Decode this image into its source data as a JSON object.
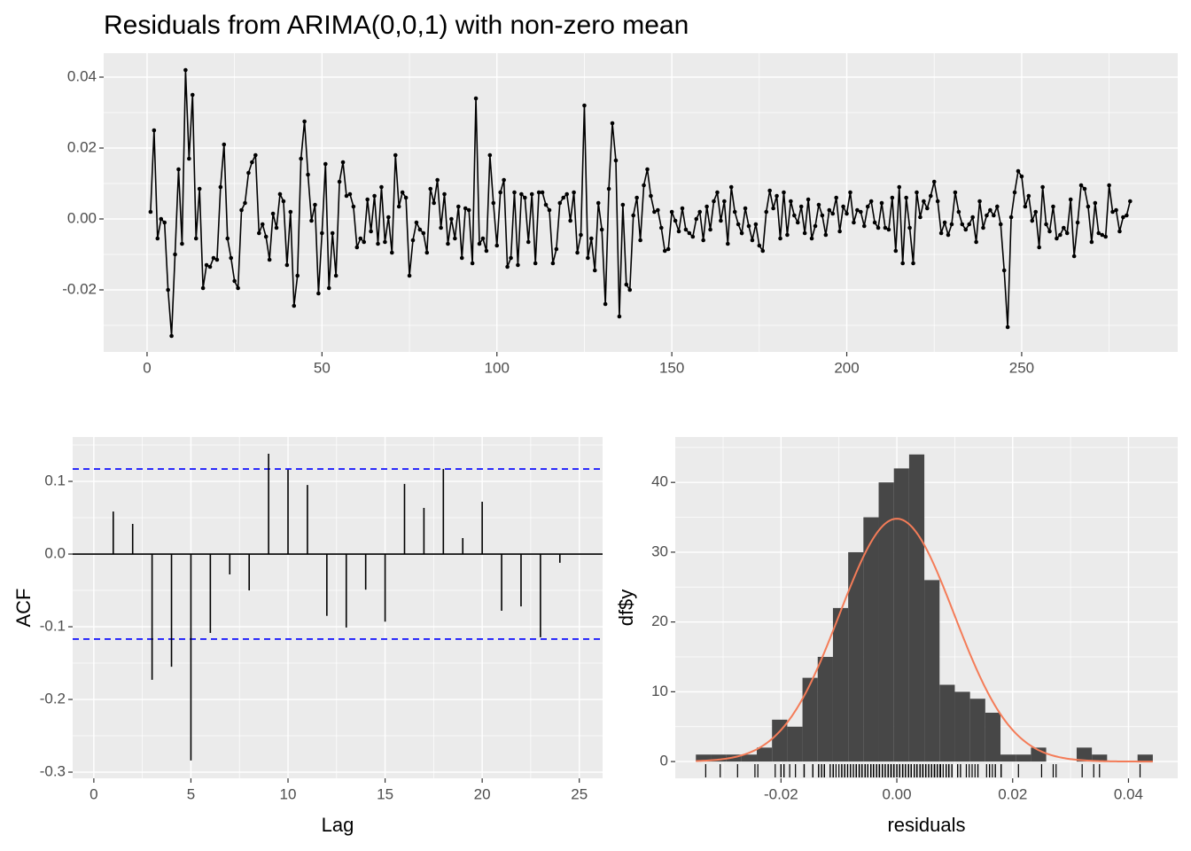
{
  "chart_data": [
    {
      "type": "line",
      "title": "Residuals from ARIMA(0,0,1) with non-zero mean",
      "x": [
        1,
        2,
        3,
        4,
        5,
        6,
        7,
        8,
        9,
        10,
        11,
        12,
        13,
        14,
        15,
        16,
        17,
        18,
        19,
        20,
        21,
        22,
        23,
        24,
        25,
        26,
        27,
        28,
        29,
        30,
        31,
        32,
        33,
        34,
        35,
        36,
        37,
        38,
        39,
        40,
        41,
        42,
        43,
        44,
        45,
        46,
        47,
        48,
        49,
        50,
        51,
        52,
        53,
        54,
        55,
        56,
        57,
        58,
        59,
        60,
        61,
        62,
        63,
        64,
        65,
        66,
        67,
        68,
        69,
        70,
        71,
        72,
        73,
        74,
        75,
        76,
        77,
        78,
        79,
        80,
        81,
        82,
        83,
        84,
        85,
        86,
        87,
        88,
        89,
        90,
        91,
        92,
        93,
        94,
        95,
        96,
        97,
        98,
        99,
        100,
        101,
        102,
        103,
        104,
        105,
        106,
        107,
        108,
        109,
        110,
        111,
        112,
        113,
        114,
        115,
        116,
        117,
        118,
        119,
        120,
        121,
        122,
        123,
        124,
        125,
        126,
        127,
        128,
        129,
        130,
        131,
        132,
        133,
        134,
        135,
        136,
        137,
        138,
        139,
        140,
        141,
        142,
        143,
        144,
        145,
        146,
        147,
        148,
        149,
        150,
        151,
        152,
        153,
        154,
        155,
        156,
        157,
        158,
        159,
        160,
        161,
        162,
        163,
        164,
        165,
        166,
        167,
        168,
        169,
        170,
        171,
        172,
        173,
        174,
        175,
        176,
        177,
        178,
        179,
        180,
        181,
        182,
        183,
        184,
        185,
        186,
        187,
        188,
        189,
        190,
        191,
        192,
        193,
        194,
        195,
        196,
        197,
        198,
        199,
        200,
        201,
        202,
        203,
        204,
        205,
        206,
        207,
        208,
        209,
        210,
        211,
        212,
        213,
        214,
        215,
        216,
        217,
        218,
        219,
        220,
        221,
        222,
        223,
        224,
        225,
        226,
        227,
        228,
        229,
        230,
        231,
        232,
        233,
        234,
        235,
        236,
        237,
        238,
        239,
        240,
        241,
        242,
        243,
        244,
        245,
        246,
        247,
        248,
        249,
        250,
        251,
        252,
        253,
        254,
        255,
        256,
        257,
        258,
        259,
        260,
        261,
        262,
        263,
        264,
        265,
        266,
        267,
        268,
        269,
        270,
        271,
        272,
        273,
        274,
        275,
        276,
        277,
        278,
        279,
        280,
        281
      ],
      "series": [
        {
          "color": "#000000",
          "values": [
            0.002,
            0.025,
            -0.0055,
            0.0,
            -0.001,
            -0.02,
            -0.033,
            -0.01,
            0.014,
            -0.007,
            0.042,
            0.017,
            0.035,
            -0.0055,
            0.0085,
            -0.0195,
            -0.013,
            -0.0135,
            -0.011,
            -0.0115,
            0.009,
            0.021,
            -0.0055,
            -0.011,
            -0.0175,
            -0.0195,
            0.0025,
            0.0045,
            0.013,
            0.016,
            0.018,
            -0.004,
            -0.0015,
            -0.005,
            -0.0115,
            0.0015,
            -0.0025,
            0.007,
            0.005,
            -0.013,
            0.002,
            -0.0245,
            -0.016,
            0.017,
            0.0275,
            0.0125,
            -0.0005,
            0.004,
            -0.021,
            -0.004,
            0.0155,
            -0.0195,
            -0.004,
            -0.016,
            0.0105,
            0.016,
            0.0065,
            0.007,
            0.0035,
            -0.008,
            -0.0055,
            -0.0065,
            0.0055,
            -0.0035,
            0.0065,
            -0.007,
            0.009,
            -0.0065,
            0.0005,
            -0.0095,
            0.018,
            0.0035,
            0.0075,
            0.006,
            -0.016,
            -0.006,
            -0.001,
            -0.003,
            -0.004,
            -0.0095,
            0.0085,
            0.0045,
            0.011,
            -0.0025,
            0.007,
            -0.007,
            0.0,
            -0.0055,
            0.0035,
            -0.011,
            0.003,
            0.0025,
            -0.0125,
            0.034,
            -0.007,
            -0.0055,
            -0.009,
            0.018,
            0.0045,
            -0.0075,
            0.0075,
            0.011,
            -0.0135,
            -0.011,
            0.0075,
            -0.013,
            0.007,
            0.006,
            -0.0065,
            0.007,
            -0.0125,
            0.0075,
            0.0075,
            0.004,
            0.0025,
            -0.0125,
            -0.0085,
            0.0045,
            0.006,
            0.007,
            -0.0005,
            0.0075,
            -0.0095,
            -0.0045,
            0.032,
            -0.011,
            -0.0055,
            -0.0145,
            0.0045,
            -0.003,
            -0.024,
            0.0085,
            0.027,
            0.0165,
            -0.0275,
            0.004,
            -0.0185,
            -0.02,
            0.001,
            0.006,
            -0.006,
            0.0095,
            0.014,
            0.0065,
            0.002,
            0.0025,
            -0.0025,
            -0.009,
            -0.0085,
            0.002,
            -0.0005,
            -0.0035,
            0.003,
            -0.003,
            -0.004,
            -0.005,
            0.0,
            0.002,
            -0.006,
            0.0035,
            -0.003,
            0.005,
            0.0075,
            -0.0005,
            0.005,
            -0.007,
            0.009,
            0.002,
            -0.0015,
            -0.004,
            0.003,
            -0.002,
            -0.006,
            -0.0015,
            -0.0075,
            -0.009,
            0.002,
            0.008,
            0.003,
            0.0065,
            -0.0055,
            0.0075,
            -0.0045,
            0.005,
            0.001,
            -0.001,
            0.0035,
            -0.004,
            0.0055,
            -0.0055,
            -0.002,
            0.004,
            0.001,
            -0.0045,
            0.0025,
            0.0015,
            0.006,
            -0.0035,
            0.0035,
            0.0015,
            0.0075,
            -0.001,
            0.0025,
            0.002,
            -0.002,
            0.0035,
            0.005,
            -0.001,
            -0.0025,
            0.0045,
            -0.0025,
            -0.003,
            0.006,
            -0.009,
            0.009,
            -0.0125,
            0.006,
            -0.0025,
            -0.0125,
            0.0075,
            0.0005,
            0.005,
            0.003,
            0.0065,
            0.0105,
            0.005,
            -0.004,
            -0.001,
            -0.0045,
            -0.0015,
            0.0075,
            0.002,
            -0.0015,
            -0.003,
            -0.0015,
            0.0005,
            -0.0065,
            0.005,
            -0.0025,
            0.001,
            0.0025,
            0.001,
            0.0035,
            -0.0015,
            -0.0145,
            -0.0305,
            0.0005,
            0.0075,
            0.0135,
            0.012,
            0.0035,
            0.0065,
            -0.0005,
            0.002,
            -0.008,
            0.009,
            -0.0015,
            -0.0035,
            0.0035,
            -0.0055,
            -0.0045,
            -0.0025,
            -0.004,
            0.0055,
            -0.0105,
            -0.001,
            0.0095,
            0.0085,
            0.0035,
            -0.0065,
            0.0045,
            -0.004,
            -0.0045,
            -0.005,
            0.0095,
            0.002,
            0.0025,
            -0.0035,
            0.0005,
            0.001,
            0.005
          ]
        }
      ],
      "xlim": [
        -12.4,
        294.6
      ],
      "ylim": [
        -0.0375,
        0.04675
      ],
      "xticks": [
        0,
        50,
        100,
        150,
        200,
        250
      ],
      "yticks": [
        -0.02,
        {
          "value": 0,
          "label": "0.00"
        },
        0.02,
        0.04
      ],
      "grid": true
    },
    {
      "type": "acf",
      "xlabel": "Lag",
      "ylabel": "ACF",
      "x": [
        1,
        2,
        3,
        4,
        5,
        6,
        7,
        8,
        9,
        10,
        11,
        12,
        13,
        14,
        15,
        16,
        17,
        18,
        19,
        20,
        21,
        22,
        23,
        24
      ],
      "values": [
        0.0585,
        0.0415,
        -0.173,
        -0.155,
        -0.284,
        -0.1085,
        -0.028,
        -0.05,
        0.138,
        0.116,
        0.095,
        -0.085,
        -0.101,
        -0.049,
        -0.093,
        0.0965,
        0.0635,
        0.117,
        0.022,
        0.072,
        -0.078,
        -0.072,
        -0.1145,
        -0.012
      ],
      "color": "#000000",
      "ci_lines": [
        0.117,
        -0.117
      ],
      "ci_color": "#0000ff",
      "xlim": [
        -1.09,
        26.2
      ],
      "ylim": [
        -0.3085,
        0.161
      ],
      "xticks": [
        0,
        5,
        10,
        15,
        20,
        25
      ],
      "yticks": [
        -0.3,
        -0.2,
        -0.1,
        {
          "value": 0,
          "label": "0.0"
        },
        0.1
      ],
      "grid": true
    },
    {
      "type": "histogram",
      "xlabel": "residuals",
      "ylabel": "df$y",
      "bins": [
        -0.0347,
        -0.03207,
        -0.02944,
        -0.02681,
        -0.02418,
        -0.02155,
        -0.01892,
        -0.01629,
        -0.01366,
        -0.01103,
        -0.0084,
        -0.00577,
        -0.00314,
        -0.00051,
        0.00212,
        0.00475,
        0.00738,
        0.01001,
        0.01264,
        0.01527,
        0.0179,
        0.02053,
        0.02316,
        0.02579,
        0.02842,
        0.03105,
        0.03368,
        0.03631,
        0.03894,
        0.04157,
        0.0442
      ],
      "counts": [
        1,
        1,
        1,
        1,
        2,
        6,
        5,
        12,
        15,
        22,
        30,
        35,
        40,
        42,
        44,
        26,
        11,
        10,
        9,
        7,
        1,
        1,
        2,
        0,
        0,
        2,
        1,
        0,
        0,
        1
      ],
      "color": "#474747",
      "normal_mean": 0.0,
      "normal_sd": 0.0099,
      "normal_peak": 34.8,
      "curve_color": "#f47c58",
      "xlim": [
        -0.03826,
        0.0485
      ],
      "ylim": [
        -2.4,
        46.5
      ],
      "xticks": [
        -0.02,
        {
          "value": 0,
          "label": "0.00"
        },
        0.02,
        0.04
      ],
      "yticks": [
        0,
        10,
        20,
        30,
        40
      ],
      "grid": true
    }
  ]
}
